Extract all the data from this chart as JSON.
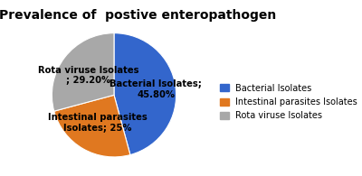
{
  "title": "Prevalence of  postive enteropathogen",
  "slices": [
    45.8,
    25.0,
    29.2
  ],
  "labels_line1": [
    "Bacterial Isolates;",
    "Intestinal parasites",
    "Rota viruse Isolates"
  ],
  "labels_line2": [
    "45.80%",
    "Isolates; 25%",
    "; 29.20%"
  ],
  "legend_labels": [
    "Bacterial Isolates",
    "Intestinal parasites Isolates",
    "Rota viruse Isolates"
  ],
  "colors": [
    "#3366cc",
    "#e07820",
    "#a8a8a8"
  ],
  "startangle": 90,
  "title_fontsize": 10,
  "label_fontsize": 7.2,
  "legend_fontsize": 7.0
}
